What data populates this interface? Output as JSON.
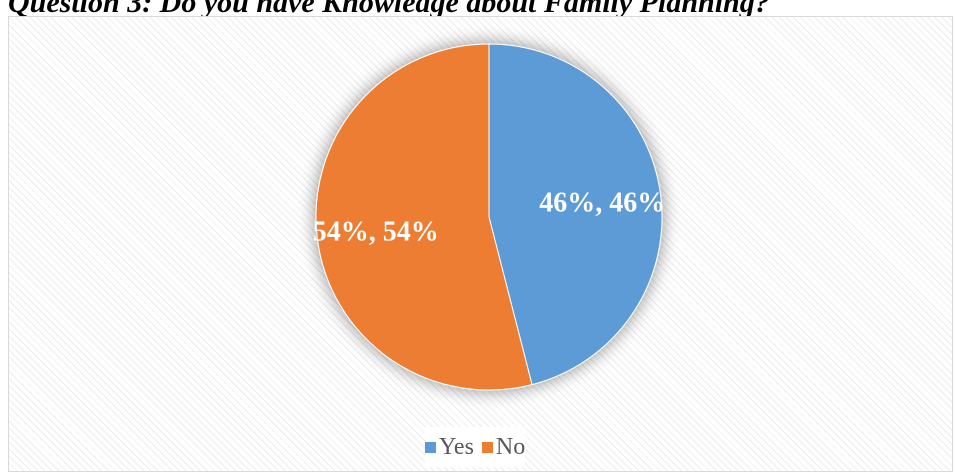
{
  "heading": "Question 3: Do you have Knowledge about Family Planning?",
  "chart_data": {
    "type": "pie",
    "title": "",
    "slices": [
      {
        "label": "Yes",
        "value": 46,
        "data_label": "46%, 46%",
        "color": "#5b9bd5"
      },
      {
        "label": "No",
        "value": 54,
        "data_label": "54%, 54%",
        "color": "#ed7d31"
      }
    ],
    "legend": {
      "position": "bottom",
      "items": [
        "Yes",
        "No"
      ]
    },
    "data_label_color": "#ffffff"
  }
}
